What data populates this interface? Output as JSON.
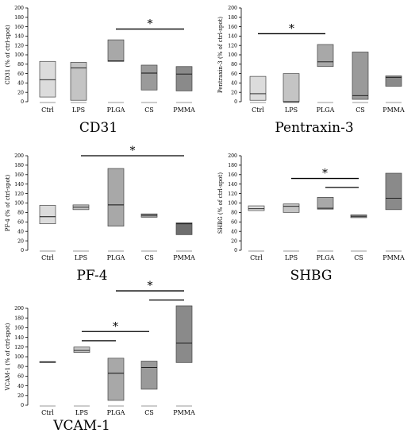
{
  "chart_data": [
    {
      "id": "cd31",
      "type": "box",
      "title": "CD31",
      "ylabel": "CD31 (% of ctrl-spot)",
      "ylim": [
        0,
        200
      ],
      "yticks": [
        0,
        20,
        40,
        60,
        80,
        100,
        120,
        140,
        160,
        180,
        200
      ],
      "categories": [
        "Ctrl",
        "LPS",
        "PLGA",
        "CS",
        "PMMA"
      ],
      "boxes": [
        {
          "q1": 10,
          "median": 47,
          "q3": 86
        },
        {
          "q1": 3,
          "median": 72,
          "q3": 84
        },
        {
          "q1": 86,
          "median": 87,
          "q3": 132
        },
        {
          "q1": 25,
          "median": 61,
          "q3": 78
        },
        {
          "q1": 23,
          "median": 59,
          "q3": 75
        }
      ],
      "colors": [
        "#dcdcdc",
        "#c4c4c4",
        "#a8a8a8",
        "#9a9a9a",
        "#8a8a8a"
      ],
      "sig_bars": [
        {
          "from": 2,
          "to": 4,
          "y": 155,
          "label": "*"
        }
      ]
    },
    {
      "id": "ptx3",
      "type": "box",
      "title": "Pentraxin-3",
      "ylabel": "Pentraxin-3 (% of ctrl-spot)",
      "ylim": [
        0,
        200
      ],
      "yticks": [
        0,
        20,
        40,
        60,
        80,
        100,
        120,
        140,
        160,
        180,
        200
      ],
      "categories": [
        "Ctrl",
        "LPS",
        "PLGA",
        "CS",
        "PMMA"
      ],
      "boxes": [
        {
          "q1": 3,
          "median": 17,
          "q3": 54
        },
        {
          "q1": 0,
          "median": 0,
          "q3": 60
        },
        {
          "q1": 75,
          "median": 85,
          "q3": 122
        },
        {
          "q1": 5,
          "median": 13,
          "q3": 106
        },
        {
          "q1": 33,
          "median": 52,
          "q3": 55
        }
      ],
      "colors": [
        "#dcdcdc",
        "#c4c4c4",
        "#a8a8a8",
        "#9a9a9a",
        "#8a8a8a"
      ],
      "sig_bars": [
        {
          "from": 0,
          "to": 2,
          "y": 145,
          "label": "*"
        }
      ]
    },
    {
      "id": "pf4",
      "type": "box",
      "title": "PF-4",
      "ylabel": "PF-4 (% of ctrl-spot)",
      "ylim": [
        0,
        200
      ],
      "yticks": [
        0,
        20,
        40,
        60,
        80,
        100,
        120,
        140,
        160,
        180,
        200
      ],
      "categories": [
        "Ctrl",
        "LPS",
        "PLGA",
        "CS",
        "PMMA"
      ],
      "boxes": [
        {
          "q1": 56,
          "median": 71,
          "q3": 95
        },
        {
          "q1": 86,
          "median": 91,
          "q3": 96
        },
        {
          "q1": 51,
          "median": 96,
          "q3": 173
        },
        {
          "q1": 70,
          "median": 74,
          "q3": 77
        },
        {
          "q1": 33,
          "median": 56,
          "q3": 58
        }
      ],
      "colors": [
        "#dcdcdc",
        "#c4c4c4",
        "#a8a8a8",
        "#9a9a9a",
        "#6e6e6e"
      ],
      "sig_bars": [
        {
          "from": 1,
          "to": 4,
          "y": 200,
          "label": "*"
        }
      ]
    },
    {
      "id": "shbg",
      "type": "box",
      "title": "SHBG",
      "ylabel": "SHBG (% of ctrl-spot)",
      "ylim": [
        0,
        200
      ],
      "yticks": [
        0,
        20,
        40,
        60,
        80,
        100,
        120,
        140,
        160,
        180,
        200
      ],
      "categories": [
        "Ctrl",
        "LPS",
        "PLGA",
        "CS",
        "PMMA"
      ],
      "boxes": [
        {
          "q1": 84,
          "median": 88,
          "q3": 94
        },
        {
          "q1": 80,
          "median": 93,
          "q3": 98
        },
        {
          "q1": 87,
          "median": 89,
          "q3": 112
        },
        {
          "q1": 69,
          "median": 72,
          "q3": 75
        },
        {
          "q1": 86,
          "median": 110,
          "q3": 163
        }
      ],
      "colors": [
        "#dcdcdc",
        "#c4c4c4",
        "#a8a8a8",
        "#9a9a9a",
        "#8a8a8a"
      ],
      "sig_bars": [
        {
          "from": 1,
          "to": 3,
          "y": 152,
          "label": "*"
        },
        {
          "from": 2,
          "to": 3,
          "y": 133,
          "label": ""
        }
      ]
    },
    {
      "id": "vcam1",
      "type": "box",
      "title": "VCAM-1",
      "ylabel": "VCAM-1 (% of ctrl-spot)",
      "ylim": [
        0,
        200
      ],
      "yticks": [
        0,
        20,
        40,
        60,
        80,
        100,
        120,
        140,
        160,
        180,
        200
      ],
      "categories": [
        "Ctrl",
        "LPS",
        "PLGA",
        "CS",
        "PMMA"
      ],
      "boxes": [
        {
          "q1": 88,
          "median": 89,
          "q3": 90
        },
        {
          "q1": 109,
          "median": 113,
          "q3": 120
        },
        {
          "q1": 10,
          "median": 66,
          "q3": 97
        },
        {
          "q1": 33,
          "median": 78,
          "q3": 91
        },
        {
          "q1": 88,
          "median": 128,
          "q3": 205
        }
      ],
      "colors": [
        "#dcdcdc",
        "#c4c4c4",
        "#a8a8a8",
        "#9a9a9a",
        "#8a8a8a"
      ],
      "sig_bars": [
        {
          "from": 1,
          "to": 3,
          "y": 152,
          "label": "*"
        },
        {
          "from": 1,
          "to": 2,
          "y": 133,
          "label": ""
        },
        {
          "from": 2,
          "to": 4,
          "y": 236,
          "label": "*"
        },
        {
          "from": 3,
          "to": 4,
          "y": 217,
          "label": ""
        }
      ]
    }
  ]
}
